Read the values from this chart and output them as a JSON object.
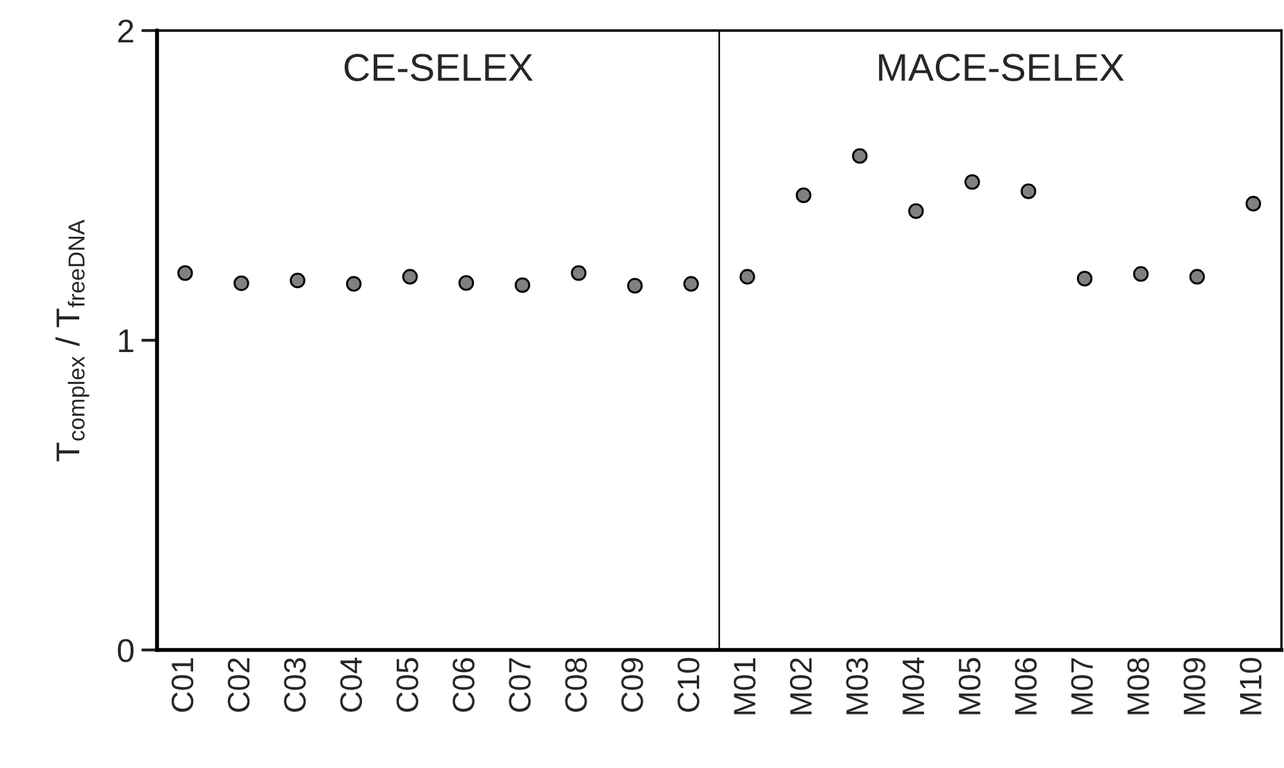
{
  "chart_data": {
    "type": "scatter",
    "ylabel": "T$_{complex}$ / T$_{freeDNA}$",
    "categories": [
      "C01",
      "C02",
      "C03",
      "C04",
      "C05",
      "C06",
      "C07",
      "C08",
      "C09",
      "C10",
      "M01",
      "M02",
      "M03",
      "M04",
      "M05",
      "M06",
      "M07",
      "M08",
      "M09",
      "M10"
    ],
    "series": [
      {
        "color": "#808080",
        "values": [
          1.217,
          1.184,
          1.193,
          1.182,
          1.205,
          1.185,
          1.178,
          1.217,
          1.176,
          1.182,
          1.205,
          1.468,
          1.595,
          1.417,
          1.511,
          1.481,
          1.199,
          1.214,
          1.205,
          1.441
        ],
        "errors": [
          null,
          null,
          null,
          null,
          null,
          null,
          null,
          null,
          null,
          null,
          null,
          null,
          null,
          null,
          0.015,
          null,
          null,
          null,
          null,
          null
        ]
      }
    ],
    "ylim": [
      0,
      2
    ],
    "yticks": [
      0,
      1,
      2
    ],
    "marker": "circle",
    "grid": false,
    "legend": false,
    "annotations": [
      "CE-SELEX",
      "MACE-SELEX"
    ]
  }
}
